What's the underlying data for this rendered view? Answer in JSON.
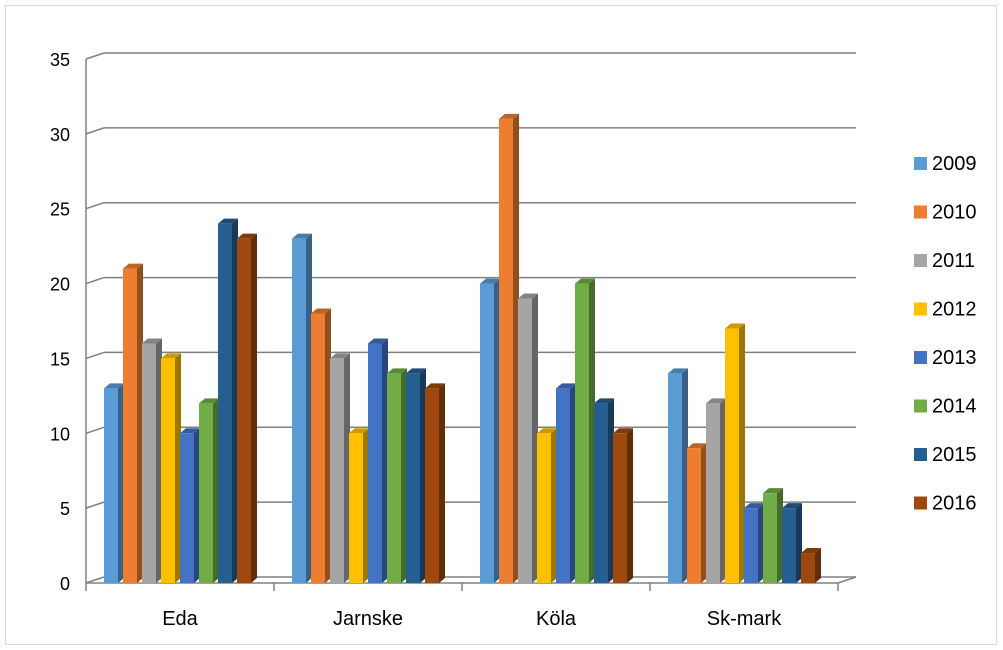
{
  "chart_data": {
    "type": "bar",
    "title": "",
    "xlabel": "",
    "ylabel": "",
    "categories": [
      "Eda",
      "Jarnske",
      "Köla",
      "Sk-mark"
    ],
    "ylim": [
      0,
      35
    ],
    "yticks": [
      0,
      5,
      10,
      15,
      20,
      25,
      30,
      35
    ],
    "grid": true,
    "legend_position": "right",
    "style": "3d-clustered-column",
    "series": [
      {
        "name": "2009",
        "color": "#5B9BD5",
        "values": [
          13,
          23,
          20,
          14
        ]
      },
      {
        "name": "2010",
        "color": "#ED7D31",
        "values": [
          21,
          18,
          31,
          9
        ]
      },
      {
        "name": "2011",
        "color": "#A5A5A5",
        "values": [
          16,
          15,
          19,
          12
        ]
      },
      {
        "name": "2012",
        "color": "#FFC000",
        "values": [
          15,
          10,
          10,
          17
        ]
      },
      {
        "name": "2013",
        "color": "#4472C4",
        "values": [
          10,
          16,
          13,
          5
        ]
      },
      {
        "name": "2014",
        "color": "#70AD47",
        "values": [
          12,
          14,
          20,
          6
        ]
      },
      {
        "name": "2015",
        "color": "#255E91",
        "values": [
          24,
          14,
          12,
          5
        ]
      },
      {
        "name": "2016",
        "color": "#9E480E",
        "values": [
          23,
          13,
          10,
          2
        ]
      }
    ]
  }
}
